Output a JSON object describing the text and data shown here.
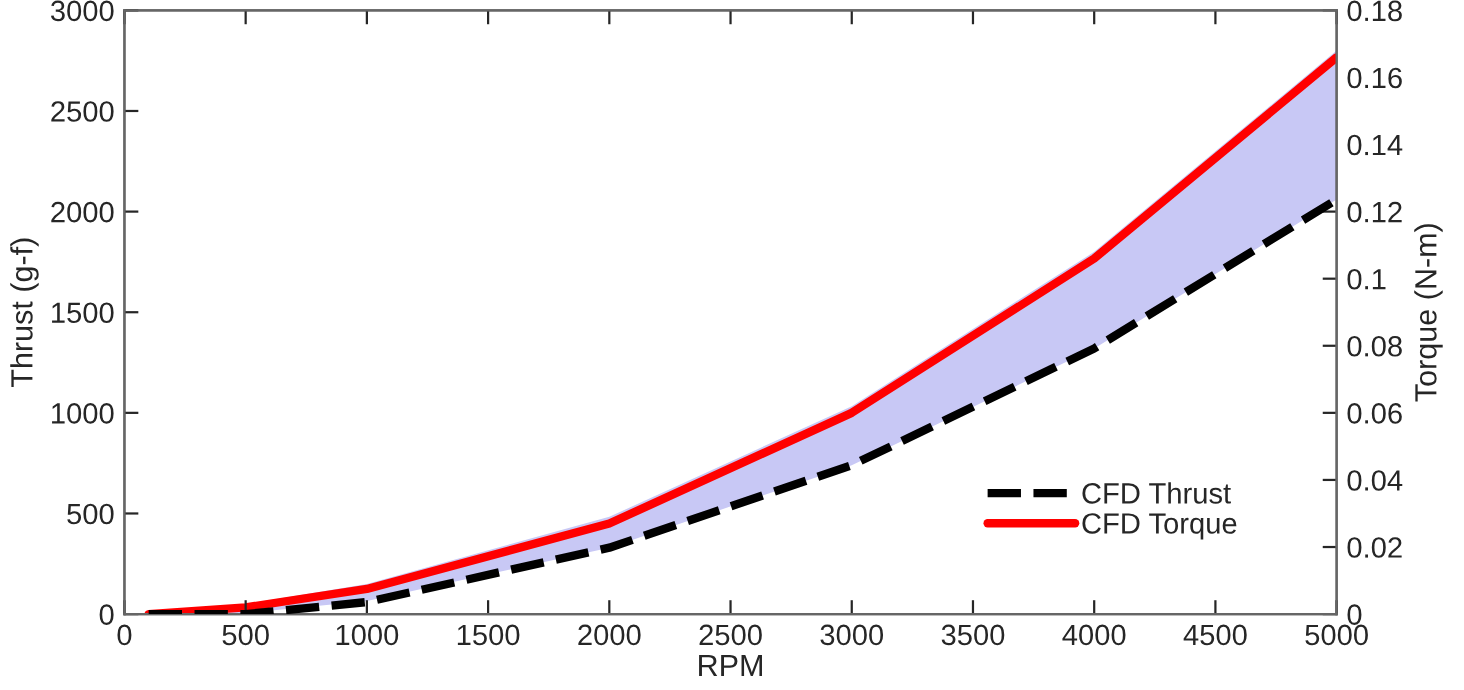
{
  "chart_data": {
    "type": "line",
    "xlabel": "RPM",
    "ylabel": "Thrust (g-f)",
    "y2label": "Torque (N-m)",
    "x": [
      100,
      500,
      1000,
      2000,
      3000,
      4000,
      5000
    ],
    "series": [
      {
        "name": "CFD Thrust",
        "color": "#000000",
        "line_style": "dashed",
        "values": [
          0,
          0,
          60,
          330,
          740,
          1320,
          2060
        ]
      },
      {
        "name": "CFD Torque",
        "color": "#ff0000",
        "line_style": "solid",
        "axis": "y2",
        "values": [
          0,
          0.002,
          0.0075,
          0.027,
          0.06,
          0.106,
          0.166
        ],
        "lower": [
          0,
          0.0003,
          0.0039,
          0.0198,
          0.0444,
          0.0792,
          0.1236
        ],
        "upper": [
          0.001,
          0.003,
          0.009,
          0.029,
          0.062,
          0.108,
          0.168
        ]
      }
    ],
    "xlim": [
      0,
      5000
    ],
    "xticks": [
      0,
      500,
      1000,
      1500,
      2000,
      2500,
      3000,
      3500,
      4000,
      4500,
      5000
    ],
    "ylim": [
      0,
      3000
    ],
    "yticks": [
      0,
      500,
      1000,
      1500,
      2000,
      2500,
      3000
    ],
    "y2lim": [
      0,
      0.18
    ],
    "y2ticks": [
      0,
      0.02,
      0.04,
      0.06,
      0.08,
      {
        "value": 0.1,
        "label": "0.1"
      },
      0.12,
      0.14,
      0.16,
      0.18
    ],
    "legend": "bottom right",
    "grid": false
  }
}
